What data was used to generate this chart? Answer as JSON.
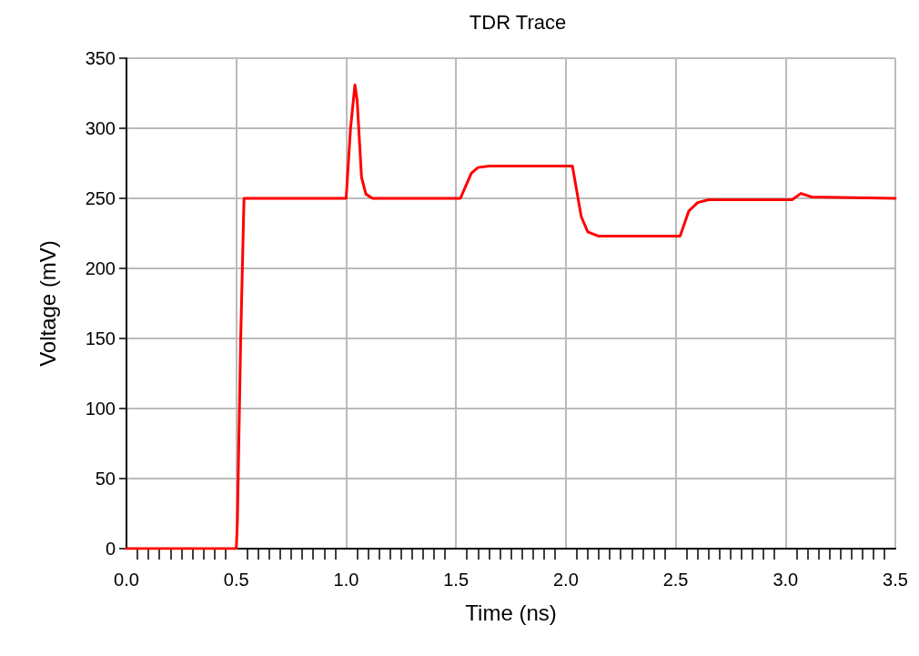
{
  "chart_data": {
    "type": "line",
    "title": "TDR Trace",
    "xlabel": "Time (ns)",
    "ylabel": "Voltage (mV)",
    "x": [
      0,
      0.5,
      0.505,
      0.52,
      0.535,
      1.0,
      1.02,
      1.04,
      1.05,
      1.07,
      1.09,
      1.12,
      1.52,
      1.57,
      1.6,
      1.65,
      2.03,
      2.07,
      2.1,
      2.15,
      2.52,
      2.56,
      2.6,
      2.65,
      3.03,
      3.07,
      3.12,
      3.5
    ],
    "series": [
      {
        "color": "#ff0000",
        "values": [
          0,
          0,
          20,
          150,
          250,
          250,
          300,
          331,
          320,
          265,
          253,
          250,
          250,
          268,
          272,
          273,
          273,
          237,
          226,
          223,
          223,
          241,
          247,
          249,
          249,
          253.5,
          251,
          250
        ]
      }
    ],
    "xlim": [
      0,
      3.5
    ],
    "xticks": [
      {
        "value": 0,
        "label": "0.0"
      },
      {
        "value": 0.5,
        "label": "0.5"
      },
      {
        "value": 1,
        "label": "1.0"
      },
      {
        "value": 1.5,
        "label": "1.5"
      },
      {
        "value": 2,
        "label": "2.0"
      },
      {
        "value": 2.5,
        "label": "2.5"
      },
      {
        "value": 3,
        "label": "3.0"
      },
      {
        "value": 3.5,
        "label": "3.5"
      }
    ],
    "ylim": [
      0,
      350
    ],
    "yticks": [
      0,
      50,
      100,
      150,
      200,
      250,
      300,
      350
    ],
    "grid": true,
    "marker": "none",
    "line_style": "solid"
  }
}
